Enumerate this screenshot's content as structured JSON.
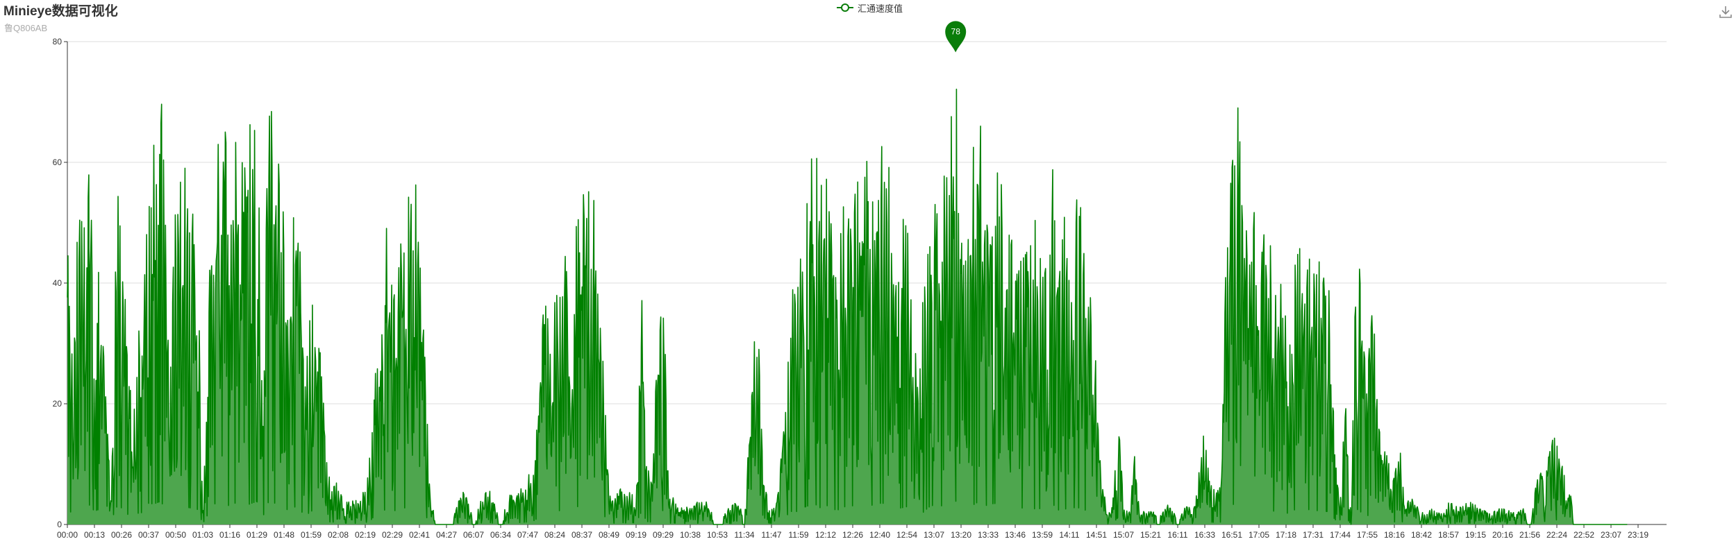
{
  "header": {
    "title": "Minieye数据可视化",
    "subtitle": "鲁Q806AB"
  },
  "toolbar": {
    "download_icon": "download-icon"
  },
  "colors": {
    "line": "#008000",
    "area": "#4ea64e",
    "grid": "#dddddd",
    "marker": "#0a7d0a"
  },
  "chart_data": {
    "type": "area",
    "title": "Minieye数据可视化",
    "subtitle": "鲁Q806AB",
    "legend": {
      "entries": [
        "汇通速度值"
      ],
      "placement": "top-center"
    },
    "series": [
      {
        "name": "汇通速度值"
      }
    ],
    "ylim": [
      0,
      80
    ],
    "y_ticks": [
      0,
      20,
      40,
      60,
      80
    ],
    "x_tick_labels": [
      "00:00",
      "00:13",
      "00:26",
      "00:37",
      "00:50",
      "01:03",
      "01:16",
      "01:29",
      "01:48",
      "01:59",
      "02:08",
      "02:19",
      "02:29",
      "02:41",
      "04:27",
      "06:07",
      "06:34",
      "07:47",
      "08:24",
      "08:37",
      "08:49",
      "09:19",
      "09:29",
      "10:38",
      "10:53",
      "11:34",
      "11:47",
      "11:59",
      "12:12",
      "12:26",
      "12:40",
      "12:54",
      "13:07",
      "13:20",
      "13:33",
      "13:46",
      "13:59",
      "14:11",
      "14:51",
      "15:07",
      "15:21",
      "16:11",
      "16:33",
      "16:51",
      "17:05",
      "17:18",
      "17:31",
      "17:44",
      "17:55",
      "18:16",
      "18:42",
      "18:57",
      "19:15",
      "20:16",
      "21:56",
      "22:24",
      "22:52",
      "23:07",
      "23:19"
    ],
    "max_marker": {
      "value": 78,
      "label": "78",
      "at_tick": "13:07"
    },
    "grid": true,
    "envelope": {
      "note_units": "x is tick index (0-58), y is speed value",
      "points": [
        [
          0,
          54
        ],
        [
          0.2,
          33
        ],
        [
          0.4,
          61
        ],
        [
          0.6,
          58
        ],
        [
          0.8,
          66
        ],
        [
          1.0,
          44
        ],
        [
          1.2,
          51
        ],
        [
          1.4,
          30
        ],
        [
          1.6,
          5
        ],
        [
          1.8,
          58
        ],
        [
          2.0,
          55
        ],
        [
          2.2,
          37
        ],
        [
          2.4,
          15
        ],
        [
          2.6,
          37
        ],
        [
          2.8,
          40
        ],
        [
          3.0,
          70
        ],
        [
          3.2,
          68
        ],
        [
          3.4,
          75
        ],
        [
          3.6,
          62
        ],
        [
          3.8,
          30
        ],
        [
          4.0,
          64
        ],
        [
          4.2,
          66
        ],
        [
          4.4,
          57
        ],
        [
          4.6,
          54
        ],
        [
          4.8,
          50
        ],
        [
          5.0,
          3
        ],
        [
          5.2,
          35
        ],
        [
          5.4,
          68
        ],
        [
          5.6,
          70
        ],
        [
          5.8,
          72
        ],
        [
          6.0,
          60
        ],
        [
          6.2,
          71
        ],
        [
          6.4,
          76
        ],
        [
          6.6,
          63
        ],
        [
          6.8,
          70
        ],
        [
          7.0,
          77
        ],
        [
          7.2,
          20
        ],
        [
          7.4,
          72
        ],
        [
          7.6,
          73
        ],
        [
          7.8,
          65
        ],
        [
          8.0,
          60
        ],
        [
          8.2,
          41
        ],
        [
          8.4,
          58
        ],
        [
          8.6,
          47
        ],
        [
          8.8,
          27
        ],
        [
          9.0,
          46
        ],
        [
          9.2,
          35
        ],
        [
          9.4,
          37
        ],
        [
          9.6,
          9
        ],
        [
          9.8,
          8
        ],
        [
          10.0,
          7
        ],
        [
          10.2,
          4
        ],
        [
          10.4,
          5
        ],
        [
          10.6,
          4
        ],
        [
          10.8,
          5
        ],
        [
          11.0,
          6
        ],
        [
          11.2,
          13
        ],
        [
          11.4,
          35
        ],
        [
          11.6,
          45
        ],
        [
          11.8,
          50
        ],
        [
          12.0,
          45
        ],
        [
          12.2,
          47
        ],
        [
          12.4,
          53
        ],
        [
          12.6,
          60
        ],
        [
          12.8,
          62
        ],
        [
          13.0,
          55
        ],
        [
          13.2,
          32
        ],
        [
          13.4,
          5
        ],
        [
          13.6,
          1
        ],
        [
          14.0,
          1
        ],
        [
          14.2,
          0
        ],
        [
          14.5,
          6
        ],
        [
          14.8,
          5
        ],
        [
          15.0,
          0
        ],
        [
          15.3,
          5
        ],
        [
          15.6,
          6
        ],
        [
          16.0,
          0
        ],
        [
          16.3,
          5
        ],
        [
          16.6,
          6
        ],
        [
          17.0,
          8
        ],
        [
          17.2,
          11
        ],
        [
          17.4,
          23
        ],
        [
          17.6,
          48
        ],
        [
          17.8,
          32
        ],
        [
          18.0,
          50
        ],
        [
          18.2,
          45
        ],
        [
          18.4,
          55
        ],
        [
          18.6,
          18
        ],
        [
          18.8,
          60
        ],
        [
          19.0,
          55
        ],
        [
          19.2,
          61
        ],
        [
          19.4,
          60
        ],
        [
          19.6,
          38
        ],
        [
          19.8,
          32
        ],
        [
          20.0,
          6
        ],
        [
          20.2,
          4
        ],
        [
          20.4,
          7
        ],
        [
          20.6,
          5
        ],
        [
          20.8,
          7
        ],
        [
          21.0,
          4
        ],
        [
          21.2,
          43
        ],
        [
          21.4,
          10
        ],
        [
          21.6,
          7
        ],
        [
          21.8,
          35
        ],
        [
          22.0,
          47
        ],
        [
          22.2,
          4
        ],
        [
          22.4,
          5
        ],
        [
          22.6,
          3
        ],
        [
          23.0,
          3
        ],
        [
          23.3,
          4
        ],
        [
          23.6,
          4
        ],
        [
          24.0,
          0
        ],
        [
          24.4,
          3
        ],
        [
          24.8,
          4
        ],
        [
          25.0,
          0
        ],
        [
          25.3,
          31
        ],
        [
          25.5,
          37
        ],
        [
          25.7,
          8
        ],
        [
          26.0,
          3
        ],
        [
          26.3,
          8
        ],
        [
          26.6,
          33
        ],
        [
          26.8,
          48
        ],
        [
          27.0,
          40
        ],
        [
          27.2,
          57
        ],
        [
          27.4,
          63
        ],
        [
          27.6,
          68
        ],
        [
          27.8,
          55
        ],
        [
          28.0,
          63
        ],
        [
          28.2,
          60
        ],
        [
          28.4,
          45
        ],
        [
          28.6,
          57
        ],
        [
          28.8,
          60
        ],
        [
          29.0,
          62
        ],
        [
          29.2,
          68
        ],
        [
          29.4,
          71
        ],
        [
          29.6,
          65
        ],
        [
          29.8,
          63
        ],
        [
          30.0,
          70
        ],
        [
          30.2,
          70
        ],
        [
          30.4,
          60
        ],
        [
          30.6,
          52
        ],
        [
          30.8,
          55
        ],
        [
          31.0,
          59
        ],
        [
          31.2,
          35
        ],
        [
          31.4,
          25
        ],
        [
          31.6,
          40
        ],
        [
          31.8,
          57
        ],
        [
          32.0,
          65
        ],
        [
          32.2,
          61
        ],
        [
          32.4,
          63
        ],
        [
          32.6,
          75
        ],
        [
          32.8,
          78
        ],
        [
          33.0,
          52
        ],
        [
          33.2,
          45
        ],
        [
          33.4,
          62
        ],
        [
          33.6,
          73
        ],
        [
          33.8,
          70
        ],
        [
          34.0,
          60
        ],
        [
          34.2,
          70
        ],
        [
          34.4,
          68
        ],
        [
          34.6,
          55
        ],
        [
          34.8,
          52
        ],
        [
          35.0,
          42
        ],
        [
          35.2,
          55
        ],
        [
          35.4,
          53
        ],
        [
          35.6,
          48
        ],
        [
          35.8,
          55
        ],
        [
          36.0,
          50
        ],
        [
          36.2,
          42
        ],
        [
          36.4,
          66
        ],
        [
          36.6,
          48
        ],
        [
          36.8,
          55
        ],
        [
          37.0,
          44
        ],
        [
          37.2,
          57
        ],
        [
          37.4,
          54
        ],
        [
          37.6,
          47
        ],
        [
          37.8,
          50
        ],
        [
          38.0,
          25
        ],
        [
          38.2,
          8
        ],
        [
          38.4,
          2
        ],
        [
          38.6,
          3
        ],
        [
          38.8,
          24
        ],
        [
          39.0,
          3
        ],
        [
          39.2,
          2
        ],
        [
          39.4,
          13
        ],
        [
          39.6,
          2
        ],
        [
          40.0,
          3
        ],
        [
          40.3,
          1
        ],
        [
          40.6,
          4
        ],
        [
          41.0,
          1
        ],
        [
          41.3,
          3
        ],
        [
          41.6,
          3
        ],
        [
          42.0,
          18
        ],
        [
          42.2,
          8
        ],
        [
          42.4,
          7
        ],
        [
          42.6,
          8
        ],
        [
          42.8,
          61
        ],
        [
          43.0,
          63
        ],
        [
          43.2,
          75
        ],
        [
          43.4,
          55
        ],
        [
          43.6,
          46
        ],
        [
          43.8,
          55
        ],
        [
          44.0,
          45
        ],
        [
          44.2,
          50
        ],
        [
          44.4,
          48
        ],
        [
          44.6,
          43
        ],
        [
          44.8,
          45
        ],
        [
          45.0,
          38
        ],
        [
          45.2,
          36
        ],
        [
          45.4,
          58
        ],
        [
          45.6,
          44
        ],
        [
          45.8,
          51
        ],
        [
          46.0,
          42
        ],
        [
          46.2,
          47
        ],
        [
          46.4,
          44
        ],
        [
          46.6,
          42
        ],
        [
          46.8,
          17
        ],
        [
          47.0,
          3
        ],
        [
          47.2,
          24
        ],
        [
          47.4,
          1
        ],
        [
          47.6,
          52
        ],
        [
          47.8,
          39
        ],
        [
          48.0,
          28
        ],
        [
          48.2,
          41
        ],
        [
          48.4,
          22
        ],
        [
          48.6,
          16
        ],
        [
          48.8,
          13
        ],
        [
          49.0,
          8
        ],
        [
          49.2,
          14
        ],
        [
          49.4,
          3
        ],
        [
          49.6,
          5
        ],
        [
          50.0,
          2
        ],
        [
          50.4,
          3
        ],
        [
          50.8,
          2
        ],
        [
          51.0,
          4
        ],
        [
          51.4,
          3
        ],
        [
          51.8,
          4
        ],
        [
          52.2,
          3
        ],
        [
          52.6,
          2
        ],
        [
          53.0,
          3
        ],
        [
          53.4,
          2
        ],
        [
          53.8,
          3
        ],
        [
          54.0,
          0
        ],
        [
          54.4,
          12
        ],
        [
          54.6,
          9
        ],
        [
          54.8,
          18
        ],
        [
          55.0,
          15
        ],
        [
          55.2,
          10
        ],
        [
          55.4,
          7
        ],
        [
          55.6,
          3
        ]
      ]
    }
  }
}
